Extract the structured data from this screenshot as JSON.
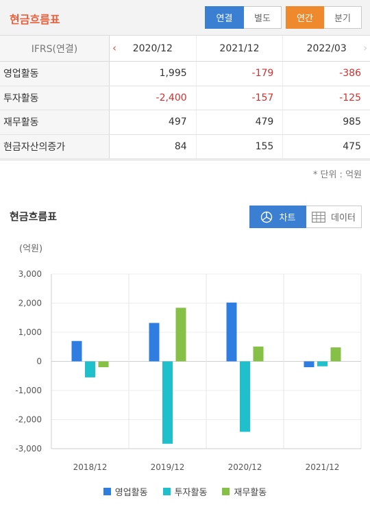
{
  "header": {
    "title": "현금흐름표",
    "scope_options": [
      "연결",
      "별도"
    ],
    "scope_selected": "연결",
    "period_options": [
      "연간",
      "분기"
    ],
    "period_selected": "연간"
  },
  "table": {
    "corner_label": "IFRS(연결)",
    "columns": [
      "2020/12",
      "2021/12",
      "2022/03"
    ],
    "rows": [
      {
        "label": "영업활동",
        "values": [
          "1,995",
          "-179",
          "-386"
        ]
      },
      {
        "label": "투자활동",
        "values": [
          "-2,400",
          "-157",
          "-125"
        ]
      },
      {
        "label": "재무활동",
        "values": [
          "497",
          "479",
          "985"
        ]
      },
      {
        "label": "현금자산의증가",
        "values": [
          "84",
          "155",
          "475"
        ]
      }
    ],
    "unit_note": "* 단위 : 억원"
  },
  "chart_section": {
    "title": "현금흐름표",
    "view_chart_label": "차트",
    "view_data_label": "데이터",
    "selected_view": "차트"
  },
  "chart_data": {
    "type": "bar",
    "unit_label": "(억원)",
    "categories": [
      "2018/12",
      "2019/12",
      "2020/12",
      "2021/12"
    ],
    "series": [
      {
        "name": "영업활동",
        "color": "#2f7de1",
        "values": [
          700,
          1320,
          2020,
          -200
        ]
      },
      {
        "name": "투자활동",
        "color": "#1fc0cc",
        "values": [
          -550,
          -2830,
          -2420,
          -170
        ]
      },
      {
        "name": "재무활동",
        "color": "#86c046",
        "values": [
          -200,
          1840,
          510,
          480
        ]
      }
    ],
    "ylim": [
      -3000,
      3000
    ],
    "yticks": [
      3000,
      2000,
      1000,
      0,
      -1000,
      -2000,
      -3000
    ],
    "ytick_labels": [
      "3,000",
      "2,000",
      "1,000",
      "0",
      "-1,000",
      "-2,000",
      "-3,000"
    ],
    "grid": true,
    "legend_position": "bottom"
  },
  "colors": {
    "accent_blue": "#3a7fd1",
    "accent_orange": "#ee8a2d",
    "title_orange": "#e8603c",
    "negative_red": "#d32f2f"
  }
}
